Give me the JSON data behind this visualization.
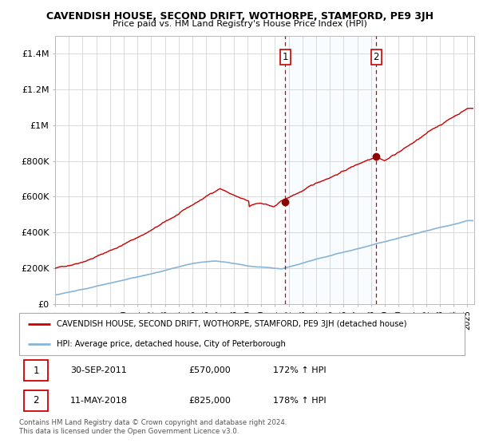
{
  "title": "CAVENDISH HOUSE, SECOND DRIFT, WOTHORPE, STAMFORD, PE9 3JH",
  "subtitle": "Price paid vs. HM Land Registry's House Price Index (HPI)",
  "ylim": [
    0,
    1500000
  ],
  "yticks": [
    0,
    200000,
    400000,
    600000,
    800000,
    1000000,
    1200000,
    1400000
  ],
  "ytick_labels": [
    "£0",
    "£200K",
    "£400K",
    "£600K",
    "£800K",
    "£1M",
    "£1.2M",
    "£1.4M"
  ],
  "sale1_year": 2011.75,
  "sale1_price": 570000,
  "sale2_year": 2018.37,
  "sale2_price": 825000,
  "legend_entry1": "CAVENDISH HOUSE, SECOND DRIFT, WOTHORPE, STAMFORD, PE9 3JH (detached house)",
  "legend_entry2": "HPI: Average price, detached house, City of Peterborough",
  "footer1": "Contains HM Land Registry data © Crown copyright and database right 2024.",
  "footer2": "This data is licensed under the Open Government Licence v3.0.",
  "table_row1": [
    "1",
    "30-SEP-2011",
    "£570,000",
    "172% ↑ HPI"
  ],
  "table_row2": [
    "2",
    "11-MAY-2018",
    "£825,000",
    "178% ↑ HPI"
  ],
  "hpi_color": "#88b4d8",
  "price_color": "#cc0000",
  "shade_color": "#ddeeff",
  "grid_color": "#cccccc",
  "background_color": "#ffffff",
  "xmin": 1995,
  "xmax": 2025.5
}
